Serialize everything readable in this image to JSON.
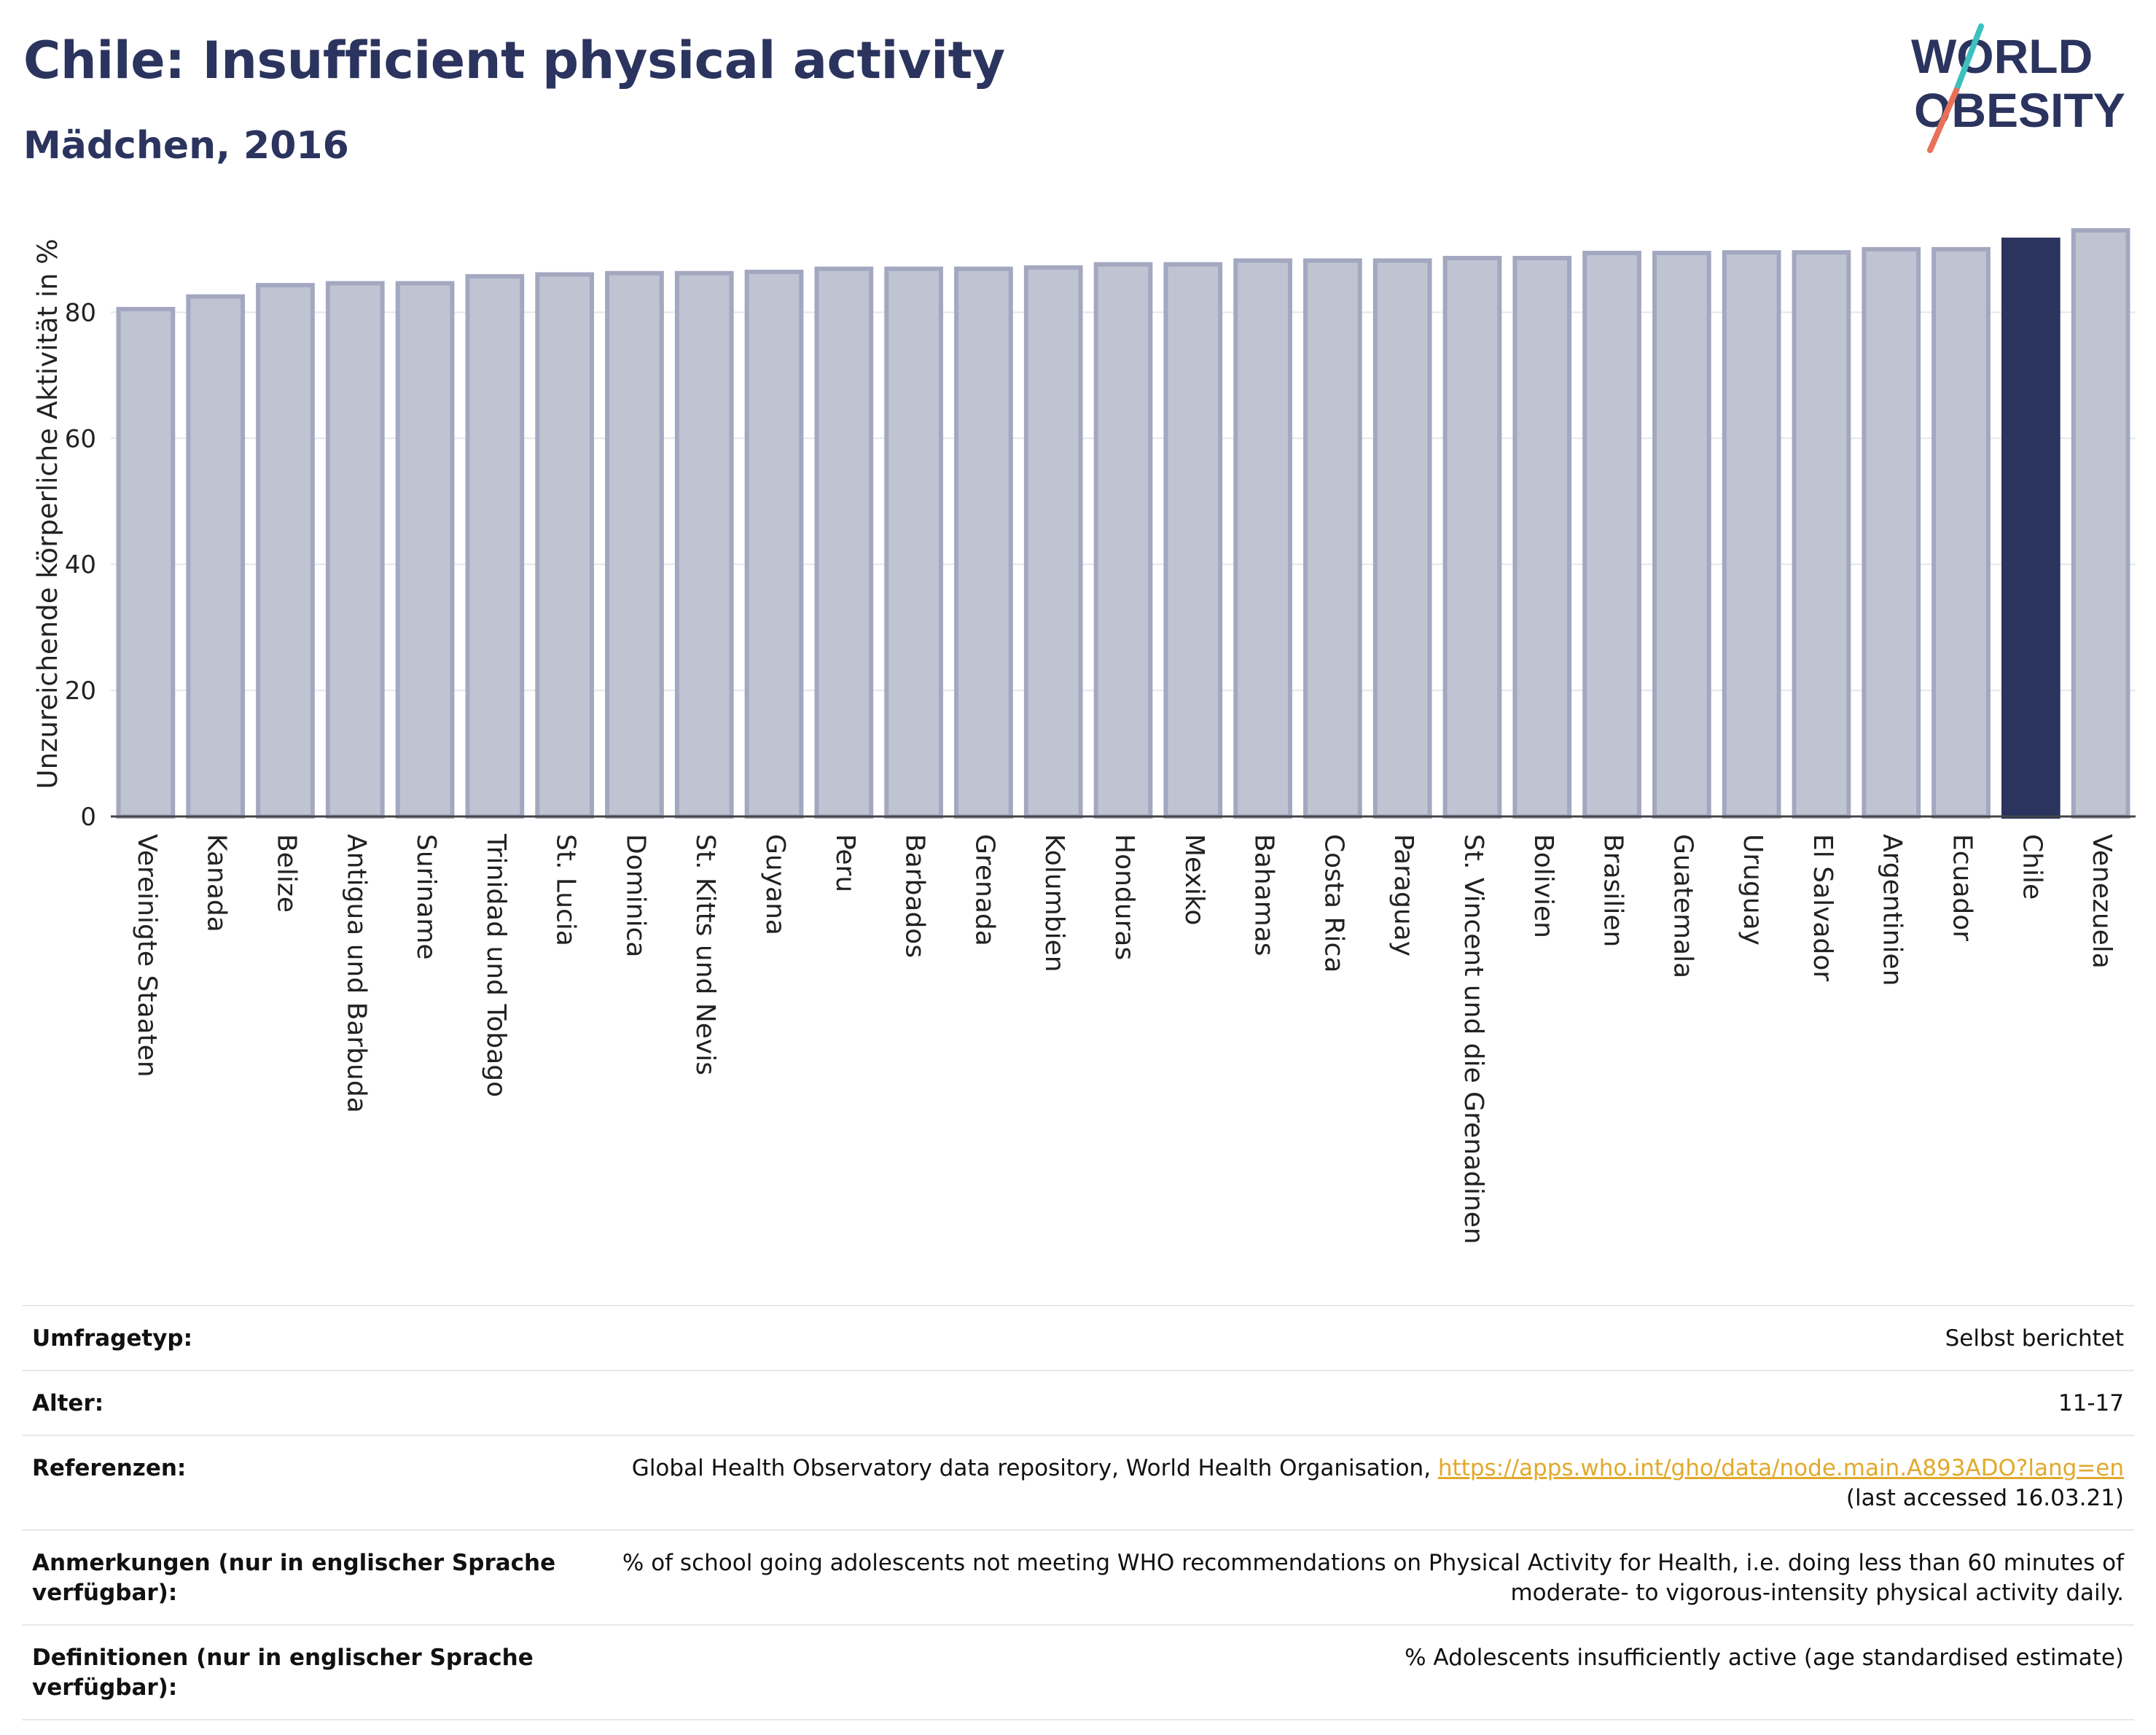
{
  "header": {
    "title": "Chile: Insufficient physical activity",
    "subtitle": "Mädchen, 2016"
  },
  "logo": {
    "line1": "WORLD",
    "line2": "OBESITY"
  },
  "colors": {
    "title": "#2b345e",
    "bar_fill": "#c0c3d1",
    "bar_stroke": "#a3a8c0",
    "highlight": "#2b345e",
    "logo_teal": "#3ec0c0",
    "logo_coral": "#e8715a",
    "link": "#e2a92b"
  },
  "chart_data": {
    "type": "bar",
    "ylabel": "Unzureichende körperliche Aktivität in %",
    "xlabel": "",
    "ylim": [
      0,
      96
    ],
    "yticks": [
      0,
      20,
      40,
      60,
      80
    ],
    "grid": true,
    "highlight": "Chile",
    "categories": [
      "Vereinigte Staaten",
      "Kanada",
      "Belize",
      "Antigua und Barbuda",
      "Suriname",
      "Trinidad und Tobago",
      "St. Lucia",
      "Dominica",
      "St. Kitts und Nevis",
      "Guyana",
      "Peru",
      "Barbados",
      "Grenada",
      "Kolumbien",
      "Honduras",
      "Mexiko",
      "Bahamas",
      "Costa Rica",
      "Paraguay",
      "St. Vincent und die Grenadinen",
      "Bolivien",
      "Brasilien",
      "Guatemala",
      "Uruguay",
      "El Salvador",
      "Argentinien",
      "Ecuador",
      "Chile",
      "Venezuela"
    ],
    "values": [
      80.5,
      82.5,
      84.3,
      84.6,
      84.6,
      85.7,
      86,
      86.2,
      86.2,
      86.4,
      86.9,
      86.9,
      86.9,
      87.1,
      87.6,
      87.6,
      88.2,
      88.2,
      88.2,
      88.6,
      88.6,
      89.4,
      89.4,
      89.5,
      89.5,
      90,
      90,
      91.5,
      93
    ]
  },
  "info": {
    "rows": [
      {
        "label": "Umfragetyp:",
        "value": "Selbst berichtet"
      },
      {
        "label": "Alter:",
        "value": "11-17"
      },
      {
        "label": "Referenzen:",
        "value": "Global Health Observatory data repository, World Health Organisation,",
        "link": "https://apps.who.int/gho/data/node.main.A893ADO?lang=en",
        "value2": "(last accessed 16.03.21)"
      },
      {
        "label": "Anmerkungen (nur in englischer Sprache verfügbar):",
        "value": "% of school going adolescents not meeting WHO recommendations on Physical Activity for Health, i.e. doing less than 60 minutes of moderate- to vigorous-intensity physical activity daily."
      },
      {
        "label": "Definitionen (nur in englischer Sprache verfügbar):",
        "value": "% Adolescents insufficiently active (age standardised estimate)"
      }
    ]
  }
}
